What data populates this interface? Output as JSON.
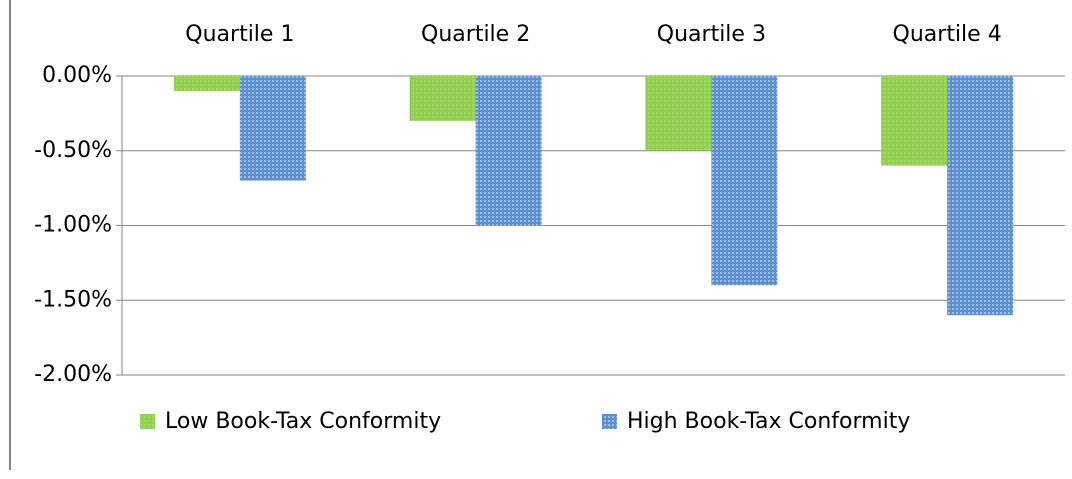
{
  "chart_data": {
    "type": "bar",
    "categories": [
      "Quartile 1",
      "Quartile 2",
      "Quartile 3",
      "Quartile 4"
    ],
    "series": [
      {
        "name": "Low Book-Tax Conformity",
        "color": "#92d050",
        "values": [
          -0.1,
          -0.3,
          -0.5,
          -0.6
        ]
      },
      {
        "name": "High Book-Tax Conformity",
        "color": "#5b8fd0",
        "values": [
          -0.7,
          -1.0,
          -1.4,
          -1.6
        ]
      }
    ],
    "ylim": [
      -2,
      0
    ],
    "yticks": [
      {
        "value": 0,
        "label": "0.00%"
      },
      {
        "value": -0.5,
        "label": "-0.50%"
      },
      {
        "value": -1,
        "label": "-1.00%"
      },
      {
        "value": -1.5,
        "label": "-1.50%"
      },
      {
        "value": -2,
        "label": "-2.00%"
      }
    ],
    "grid": true
  }
}
